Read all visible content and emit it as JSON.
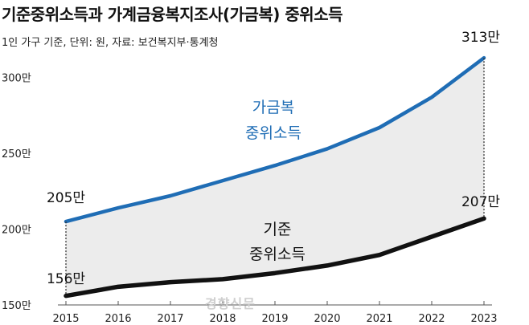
{
  "chart_data": {
    "type": "line",
    "title": "기준중위소득과 가계금융복지조사(가금복) 중위소득",
    "subtitle": "1인 가구 기준, 단위: 원, 자료: 보건복지부·통계청",
    "x": [
      "2015",
      "2016",
      "2017",
      "2018",
      "2019",
      "2020",
      "2021",
      "2022",
      "2023"
    ],
    "ylim": [
      150,
      330
    ],
    "y_ticks": [
      "150만",
      "200만",
      "250만",
      "300만"
    ],
    "y_tick_values": [
      150,
      200,
      250,
      300
    ],
    "grid": false,
    "series": [
      {
        "name": "가금복 중위소득",
        "label_lines": [
          "가금복",
          "중위소득"
        ],
        "values": [
          205,
          214,
          222,
          232,
          242,
          253,
          267,
          287,
          313
        ],
        "color": "#1f6db5",
        "start_label": "205만",
        "end_label": "313만"
      },
      {
        "name": "기준 중위소득",
        "label_lines": [
          "기준",
          "중위소득"
        ],
        "values": [
          156,
          162,
          165,
          167,
          171,
          176,
          183,
          195,
          207
        ],
        "color": "#111111",
        "start_label": "156만",
        "end_label": "207만"
      }
    ],
    "fill_between_color": "#ececec",
    "watermark": "경향신문"
  }
}
